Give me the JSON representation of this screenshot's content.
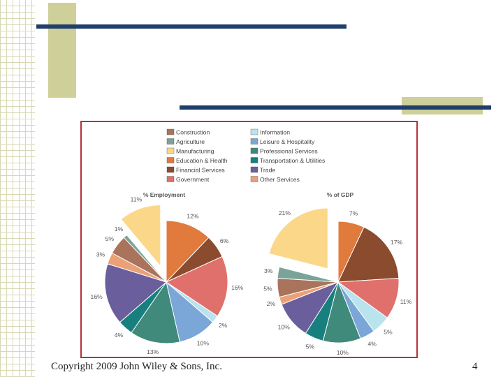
{
  "footer": {
    "copyright": "Copyright 2009 John Wiley & Sons, Inc.",
    "page_number": "4"
  },
  "colors": {
    "bar": "#1f3f6a",
    "accent_block": "#cfcf9a",
    "panel_border": "#b8303a",
    "Construction": "#a9735c",
    "Agriculture": "#7aa39a",
    "Manufacturing": "#fbd889",
    "Education & Health": "#e17a3d",
    "Financial Services": "#8a4b2e",
    "Government": "#e0706c",
    "Information": "#b9e4ee",
    "Leisure & Hospitality": "#7aa6d8",
    "Professional Services": "#3f8a7a",
    "Transportation & Utilities": "#17807e",
    "Trade": "#6a5f9c",
    "Other Services": "#eca076"
  },
  "chart_data": {
    "type": "pie",
    "legend": {
      "left": [
        "Construction",
        "Agriculture",
        "Manufacturing",
        "Education & Health",
        "Financial Services",
        "Government"
      ],
      "right": [
        "Information",
        "Leisure & Hospitality",
        "Professional Services",
        "Transportation & Utilities",
        "Trade",
        "Other Services"
      ]
    },
    "pies": [
      {
        "title": "% Employment",
        "slices": [
          {
            "category": "Education & Health",
            "label": "12%",
            "value": 12
          },
          {
            "category": "Financial Services",
            "label": "6%",
            "value": 6
          },
          {
            "category": "Government",
            "label": "16%",
            "value": 16
          },
          {
            "category": "Information",
            "label": "2%",
            "value": 2
          },
          {
            "category": "Leisure & Hospitality",
            "label": "10%",
            "value": 10
          },
          {
            "category": "Professional Services",
            "label": "13%",
            "value": 13
          },
          {
            "category": "Transportation & Utilities",
            "label": "4%",
            "value": 4
          },
          {
            "category": "Trade",
            "label": "16%",
            "value": 16
          },
          {
            "category": "Other Services",
            "label": "3%",
            "value": 3
          },
          {
            "category": "Construction",
            "label": "5%",
            "value": 5
          },
          {
            "category": "Agriculture",
            "label": "1%",
            "value": 1
          },
          {
            "category": "Manufacturing",
            "label": "11%",
            "value": 11,
            "exploded": true
          }
        ]
      },
      {
        "title": "% of GDP",
        "slices": [
          {
            "category": "Education & Health",
            "label": "7%",
            "value": 7
          },
          {
            "category": "Financial Services",
            "label": "17%",
            "value": 17
          },
          {
            "category": "Government",
            "label": "11%",
            "value": 11
          },
          {
            "category": "Information",
            "label": "5%",
            "value": 5
          },
          {
            "category": "Leisure & Hospitality",
            "label": "4%",
            "value": 4
          },
          {
            "category": "Professional Services",
            "label": "10%",
            "value": 10
          },
          {
            "category": "Transportation & Utilities",
            "label": "5%",
            "value": 5
          },
          {
            "category": "Trade",
            "label": "10%",
            "value": 10
          },
          {
            "category": "Other Services",
            "label": "2%",
            "value": 2
          },
          {
            "category": "Construction",
            "label": "5%",
            "value": 5
          },
          {
            "category": "Agriculture",
            "label": "3%",
            "value": 3
          },
          {
            "category": "Manufacturing",
            "label": "21%",
            "value": 21,
            "exploded": true
          }
        ]
      }
    ]
  }
}
